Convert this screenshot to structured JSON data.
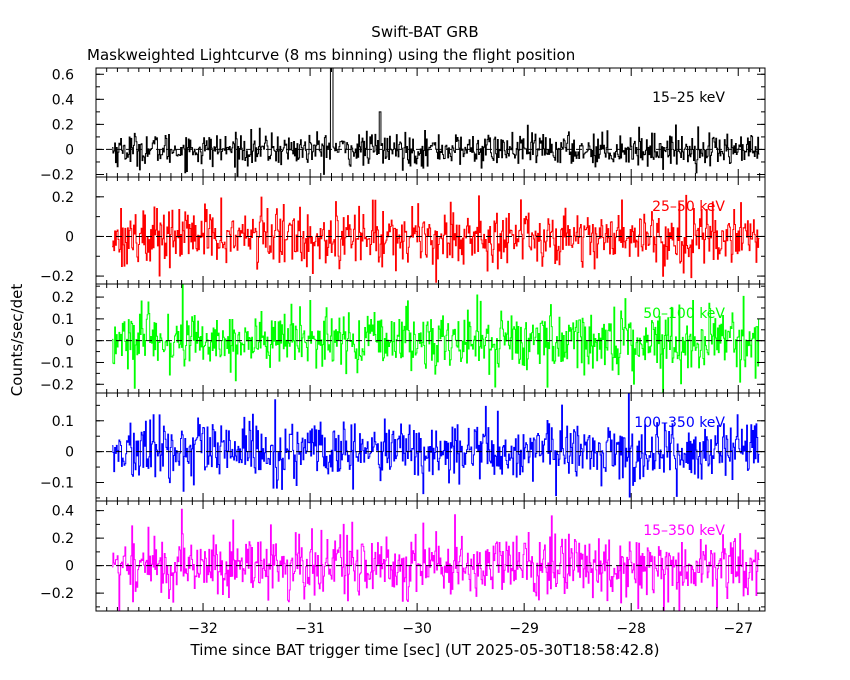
{
  "chart_data": {
    "type": "line",
    "title": "Swift-BAT GRB",
    "subtitle": "Maskweighted Lightcurve (8 ms binning) using the flight position",
    "xlabel": "Time since BAT trigger time [sec] (UT 2025-05-30T18:58:42.8)",
    "ylabel": "Counts/sec/det",
    "xlim": [
      -33.0,
      -26.75
    ],
    "data_xrange": [
      -32.85,
      -26.8
    ],
    "bin_width_sec": 0.008,
    "x_ticks": [
      -32,
      -31,
      -30,
      -29,
      -28,
      -27
    ],
    "x_tick_labels": [
      "−32",
      "−31",
      "−30",
      "−29",
      "−28",
      "−27"
    ],
    "panels": [
      {
        "name": "15-25 keV",
        "label": "15–25 keV",
        "color": "#000000",
        "ylim": [
          -0.22,
          0.65
        ],
        "y_ticks": [
          -0.2,
          0,
          0.2,
          0.4,
          0.6
        ],
        "y_tick_labels": [
          "−0.2",
          "0",
          "0.2",
          "0.4",
          "0.6"
        ],
        "noise_sigma": 0.065,
        "spikes": [
          {
            "x": -30.8,
            "value": 0.65
          },
          {
            "x": -30.35,
            "value": 0.3
          }
        ]
      },
      {
        "name": "25-50 keV",
        "label": "25–50 keV",
        "color": "#ff0000",
        "ylim": [
          -0.24,
          0.3
        ],
        "y_ticks": [
          -0.2,
          0,
          0.2
        ],
        "y_tick_labels": [
          "−0.2",
          "0",
          "0.2"
        ],
        "noise_sigma": 0.075,
        "spikes": []
      },
      {
        "name": "50-100 keV",
        "label": "50–100 keV",
        "color": "#00ff00",
        "ylim": [
          -0.24,
          0.26
        ],
        "y_ticks": [
          -0.2,
          -0.1,
          0,
          0.1,
          0.2
        ],
        "y_tick_labels": [
          "−0.2",
          "−0.1",
          "0",
          "0.1",
          "0.2"
        ],
        "noise_sigma": 0.07,
        "spikes": []
      },
      {
        "name": "100-350 keV",
        "label": "100–350 keV",
        "color": "#0000ff",
        "ylim": [
          -0.16,
          0.19
        ],
        "y_ticks": [
          -0.1,
          0,
          0.1
        ],
        "y_tick_labels": [
          "−0.1",
          "0",
          "0.1"
        ],
        "noise_sigma": 0.05,
        "spikes": []
      },
      {
        "name": "15-350 keV",
        "label": "15–350 keV",
        "color": "#ff00ff",
        "ylim": [
          -0.33,
          0.47
        ],
        "y_ticks": [
          -0.2,
          0,
          0.2,
          0.4
        ],
        "y_tick_labels": [
          "−0.2",
          "0",
          "0.2",
          "0.4"
        ],
        "noise_sigma": 0.12,
        "spikes": []
      }
    ]
  }
}
